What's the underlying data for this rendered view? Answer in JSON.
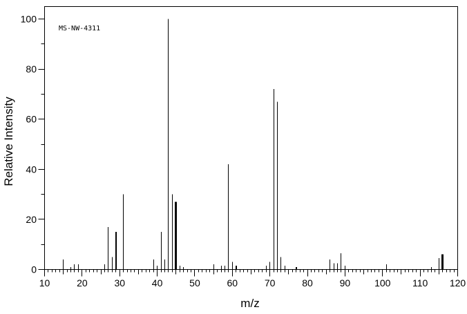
{
  "annotation": "MS-NW-4311",
  "colors": {
    "line": "#000000",
    "background": "#ffffff",
    "text": "#000000"
  },
  "chart_data": {
    "type": "bar",
    "subtype": "mass-spectrum",
    "title": "MS-NW-4311",
    "xlabel": "m/z",
    "ylabel": "Relative Intensity",
    "xlim": [
      10,
      120
    ],
    "ylim": [
      0,
      100
    ],
    "grid": false,
    "x_tick_labels": [
      "10",
      "20",
      "30",
      "40",
      "50",
      "60",
      "70",
      "80",
      "90",
      "100",
      "110",
      "120"
    ],
    "x_tick_values": [
      10,
      20,
      30,
      40,
      50,
      60,
      70,
      80,
      90,
      100,
      110,
      120
    ],
    "y_tick_labels": [
      "0",
      "20",
      "40",
      "60",
      "80",
      "100"
    ],
    "y_tick_values": [
      0,
      20,
      40,
      60,
      80,
      100
    ],
    "x_minor_tick_step": 1,
    "x_medium_tick_step": 5,
    "y_minor_tick_step": 10,
    "peaks": [
      {
        "mz": 15,
        "intensity": 4
      },
      {
        "mz": 17,
        "intensity": 1
      },
      {
        "mz": 18,
        "intensity": 2
      },
      {
        "mz": 19,
        "intensity": 2
      },
      {
        "mz": 26,
        "intensity": 2
      },
      {
        "mz": 27,
        "intensity": 17
      },
      {
        "mz": 28,
        "intensity": 5
      },
      {
        "mz": 29,
        "intensity": 15,
        "w": 2
      },
      {
        "mz": 31,
        "intensity": 30
      },
      {
        "mz": 39,
        "intensity": 4
      },
      {
        "mz": 40,
        "intensity": 1.5
      },
      {
        "mz": 41,
        "intensity": 15
      },
      {
        "mz": 42,
        "intensity": 4
      },
      {
        "mz": 43,
        "intensity": 100
      },
      {
        "mz": 44,
        "intensity": 30
      },
      {
        "mz": 45,
        "intensity": 27,
        "w": 3
      },
      {
        "mz": 46,
        "intensity": 1.5
      },
      {
        "mz": 47,
        "intensity": 1
      },
      {
        "mz": 55,
        "intensity": 2
      },
      {
        "mz": 57,
        "intensity": 1.5
      },
      {
        "mz": 58,
        "intensity": 1.5
      },
      {
        "mz": 59,
        "intensity": 42
      },
      {
        "mz": 60,
        "intensity": 3
      },
      {
        "mz": 61,
        "intensity": 1.5,
        "w": 2
      },
      {
        "mz": 69,
        "intensity": 1.5
      },
      {
        "mz": 70,
        "intensity": 3
      },
      {
        "mz": 71,
        "intensity": 72
      },
      {
        "mz": 72,
        "intensity": 67
      },
      {
        "mz": 73,
        "intensity": 5
      },
      {
        "mz": 74,
        "intensity": 1.5
      },
      {
        "mz": 77,
        "intensity": 1,
        "w": 2
      },
      {
        "mz": 86,
        "intensity": 4
      },
      {
        "mz": 87,
        "intensity": 2.5
      },
      {
        "mz": 88,
        "intensity": 2.5
      },
      {
        "mz": 89,
        "intensity": 6.5
      },
      {
        "mz": 90,
        "intensity": 1.5
      },
      {
        "mz": 101,
        "intensity": 2
      },
      {
        "mz": 113,
        "intensity": 1
      },
      {
        "mz": 115,
        "intensity": 4.5
      },
      {
        "mz": 116,
        "intensity": 6,
        "w": 3
      }
    ]
  }
}
